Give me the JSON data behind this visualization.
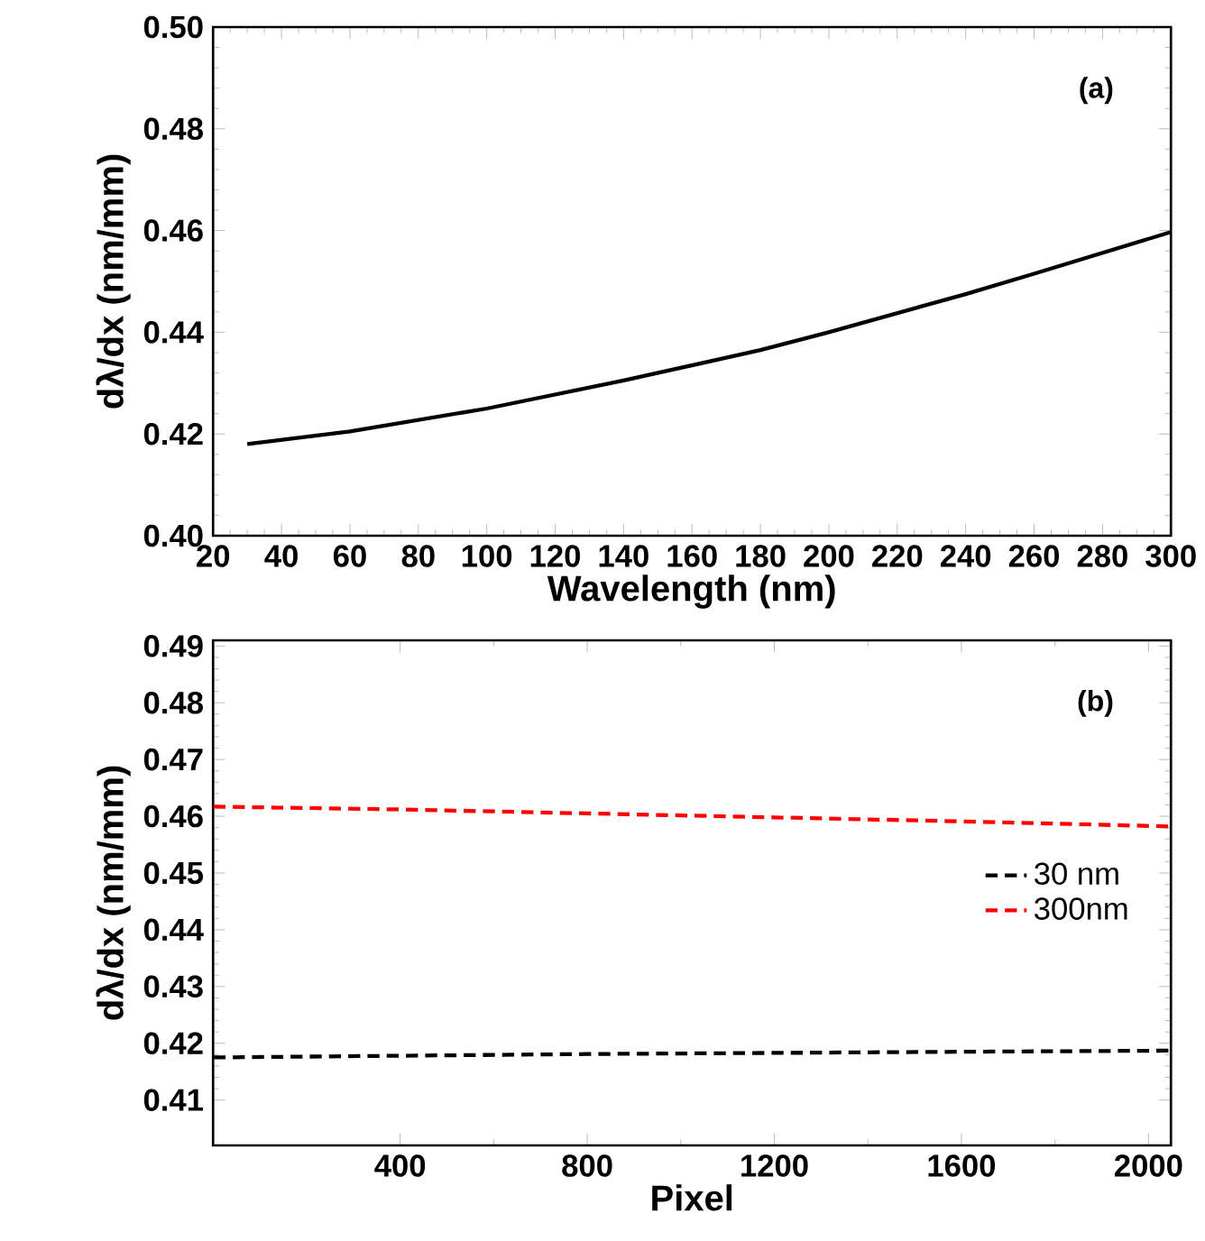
{
  "chart_data": [
    {
      "type": "line",
      "xlabel": "Wavelength (nm)",
      "ylabel": "dλ/dx (nm/mm)",
      "annotations": [
        "(a)"
      ],
      "xlim": [
        20,
        300
      ],
      "ylim": [
        0.4,
        0.5
      ],
      "xticks": [
        20,
        40,
        60,
        80,
        100,
        120,
        140,
        160,
        180,
        200,
        220,
        240,
        260,
        280,
        300
      ],
      "yticks": [
        {
          "value": 0.4,
          "label": "0.40"
        },
        {
          "value": 0.42,
          "label": "0.42"
        },
        {
          "value": 0.44,
          "label": "0.44"
        },
        {
          "value": 0.46,
          "label": "0.46"
        },
        {
          "value": 0.48,
          "label": "0.48"
        },
        {
          "value": 0.5,
          "label": "0.50"
        }
      ],
      "line_style": "solid",
      "series": [
        {
          "color": "#000000",
          "x": [
            30,
            60,
            100,
            140,
            180,
            200,
            240,
            260,
            300
          ],
          "values": [
            0.418,
            0.4205,
            0.425,
            0.4305,
            0.4365,
            0.44,
            0.4475,
            0.4515,
            0.4597
          ]
        }
      ]
    },
    {
      "type": "line",
      "xlabel": "Pixel",
      "ylabel": "dλ/dx (nm/mm)",
      "annotations": [
        "(b)"
      ],
      "xlim": [
        0,
        2048
      ],
      "ylim": [
        0.402,
        0.491
      ],
      "xticks": [
        400,
        800,
        1200,
        1600,
        2000
      ],
      "yticks": [
        0.41,
        0.42,
        0.43,
        0.44,
        0.45,
        0.46,
        0.47,
        0.48,
        0.49
      ],
      "line_style": "dashed",
      "legend": "right",
      "series": [
        {
          "name": "30  nm",
          "color": "#000000",
          "x": [
            1,
            400,
            800,
            1200,
            1600,
            2048
          ],
          "values": [
            0.4175,
            0.4178,
            0.4181,
            0.4183,
            0.4185,
            0.4187
          ]
        },
        {
          "name": "300nm",
          "color": "#ff0000",
          "x": [
            1,
            400,
            800,
            1200,
            1600,
            2048
          ],
          "values": [
            0.4617,
            0.4612,
            0.4605,
            0.4598,
            0.4591,
            0.4582
          ]
        }
      ]
    }
  ]
}
